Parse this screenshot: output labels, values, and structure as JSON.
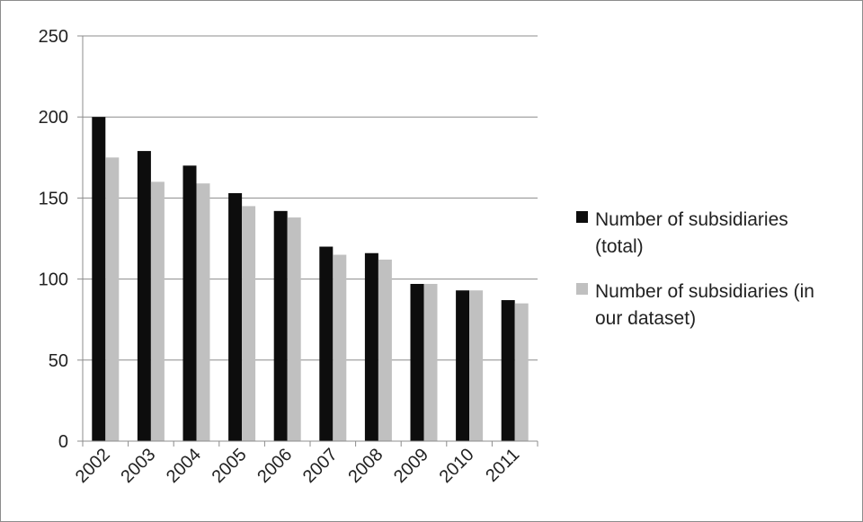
{
  "chart_data": {
    "type": "bar",
    "categories": [
      "2002",
      "2003",
      "2004",
      "2005",
      "2006",
      "2007",
      "2008",
      "2009",
      "2010",
      "2011"
    ],
    "series": [
      {
        "name": "Number of subsidiaries (total)",
        "legend_lines": [
          "Number of subsidiaries",
          "(total)"
        ],
        "color": "#0d0d0d",
        "values": [
          200,
          179,
          170,
          153,
          142,
          120,
          116,
          97,
          93,
          87
        ]
      },
      {
        "name": "Number of subsidiaries (in our dataset)",
        "legend_lines": [
          "Number of subsidiaries (in",
          "our dataset)"
        ],
        "color": "#c0c0c0",
        "values": [
          175,
          160,
          159,
          145,
          138,
          115,
          112,
          97,
          93,
          85
        ]
      }
    ],
    "ylim": [
      0,
      250
    ],
    "yticks": [
      0,
      50,
      100,
      150,
      200,
      250
    ],
    "grid": true,
    "legend": "right"
  }
}
